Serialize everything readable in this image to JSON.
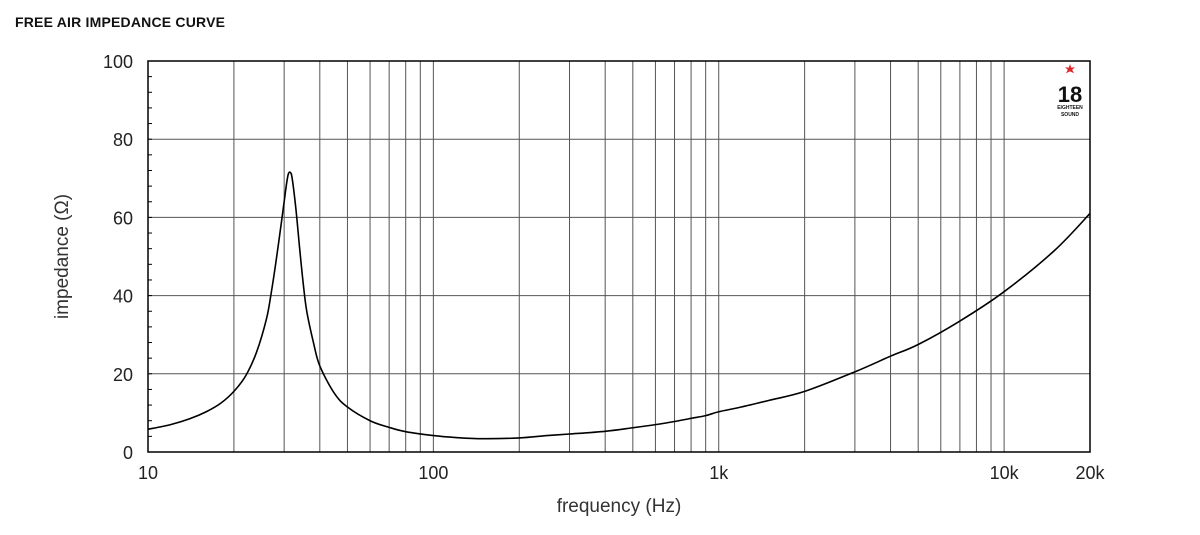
{
  "chart_data": {
    "type": "line",
    "title": "FREE AIR IMPEDANCE CURVE",
    "xlabel": "frequency (Hz)",
    "ylabel": "impedance (Ω)",
    "xscale": "log",
    "xlim": [
      10,
      20000
    ],
    "ylim": [
      0,
      100
    ],
    "grid": true,
    "x_ticks": [
      {
        "value": 10,
        "label": "10"
      },
      {
        "value": 100,
        "label": "100"
      },
      {
        "value": 1000,
        "label": "1k"
      },
      {
        "value": 10000,
        "label": "10k"
      },
      {
        "value": 20000,
        "label": "20k"
      }
    ],
    "y_ticks": [
      {
        "value": 0,
        "label": "0"
      },
      {
        "value": 20,
        "label": "20"
      },
      {
        "value": 40,
        "label": "40"
      },
      {
        "value": 60,
        "label": "60"
      },
      {
        "value": 80,
        "label": "80"
      },
      {
        "value": 100,
        "label": "100"
      }
    ],
    "series": [
      {
        "color": "#000000",
        "x": [
          10,
          12,
          14,
          16,
          18,
          20,
          22,
          24,
          26,
          27,
          28,
          29,
          30,
          30.5,
          31,
          31.5,
          32,
          33,
          34,
          35,
          36,
          38,
          40,
          45,
          50,
          60,
          70,
          80,
          100,
          120,
          150,
          200,
          250,
          300,
          400,
          500,
          600,
          700,
          800,
          900,
          1000,
          1200,
          1500,
          2000,
          3000,
          4000,
          5000,
          7000,
          10000,
          15000,
          20000
        ],
        "y": [
          5.8,
          7.0,
          8.5,
          10.3,
          12.5,
          15.5,
          19.5,
          25.5,
          34,
          40.5,
          48,
          56,
          64,
          68,
          71,
          71.5,
          70,
          62,
          52,
          43,
          36,
          28,
          22,
          15,
          11.5,
          8,
          6.3,
          5.2,
          4.2,
          3.7,
          3.4,
          3.6,
          4.2,
          4.6,
          5.3,
          6.2,
          7.0,
          7.8,
          8.6,
          9.3,
          10.3,
          11.5,
          13.2,
          15.5,
          20.5,
          24.5,
          27.5,
          33.5,
          41,
          51.5,
          61
        ]
      }
    ]
  },
  "logo": {
    "number": "18",
    "sub1": "EIGHTEEN",
    "sub2": "SOUND",
    "star_color": "#e0262b"
  }
}
